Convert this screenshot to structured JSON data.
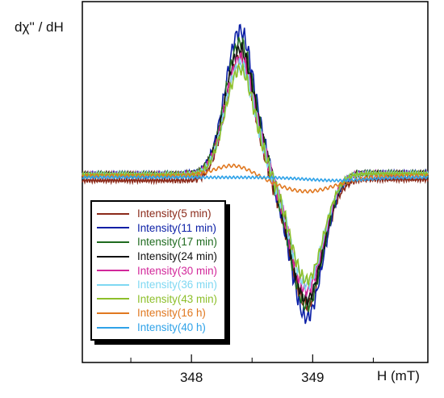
{
  "chart_data": {
    "type": "line",
    "title": "",
    "ylabel": "dχ'' / dH",
    "xlabel": "H (mT)",
    "xlim": [
      347.1,
      349.95
    ],
    "ylim": [
      -1.2,
      1.12
    ],
    "xticks": [
      "348",
      "349"
    ],
    "xtick_values": [
      348,
      349
    ],
    "grid": false,
    "legend_position": "bottom-left",
    "series": [
      {
        "name": "Intensity(5 min)",
        "color": "#8B2A1A",
        "amplitude": 0.82,
        "offset": -0.04
      },
      {
        "name": "Intensity(11 min)",
        "color": "#0B1FA6",
        "amplitude": 0.95,
        "offset": 0.0
      },
      {
        "name": "Intensity(17 min)",
        "color": "#1F6B1F",
        "amplitude": 0.87,
        "offset": 0.0
      },
      {
        "name": "Intensity(24 min)",
        "color": "#111111",
        "amplitude": 0.83,
        "offset": 0.0
      },
      {
        "name": "Intensity(30 min)",
        "color": "#D2279A",
        "amplitude": 0.77,
        "offset": 0.0
      },
      {
        "name": "Intensity(36 min)",
        "color": "#7FD8F2",
        "amplitude": 0.73,
        "offset": 0.0
      },
      {
        "name": "Intensity(43 min)",
        "color": "#8DBF2A",
        "amplitude": 0.7,
        "offset": 0.0
      },
      {
        "name": "Intensity(16 h)",
        "color": "#E07820",
        "amplitude": 0.07,
        "offset": -0.02
      },
      {
        "name": "Intensity(40 h)",
        "color": "#2FA2E8",
        "amplitude": 0.01,
        "offset": 0.0
      }
    ]
  }
}
